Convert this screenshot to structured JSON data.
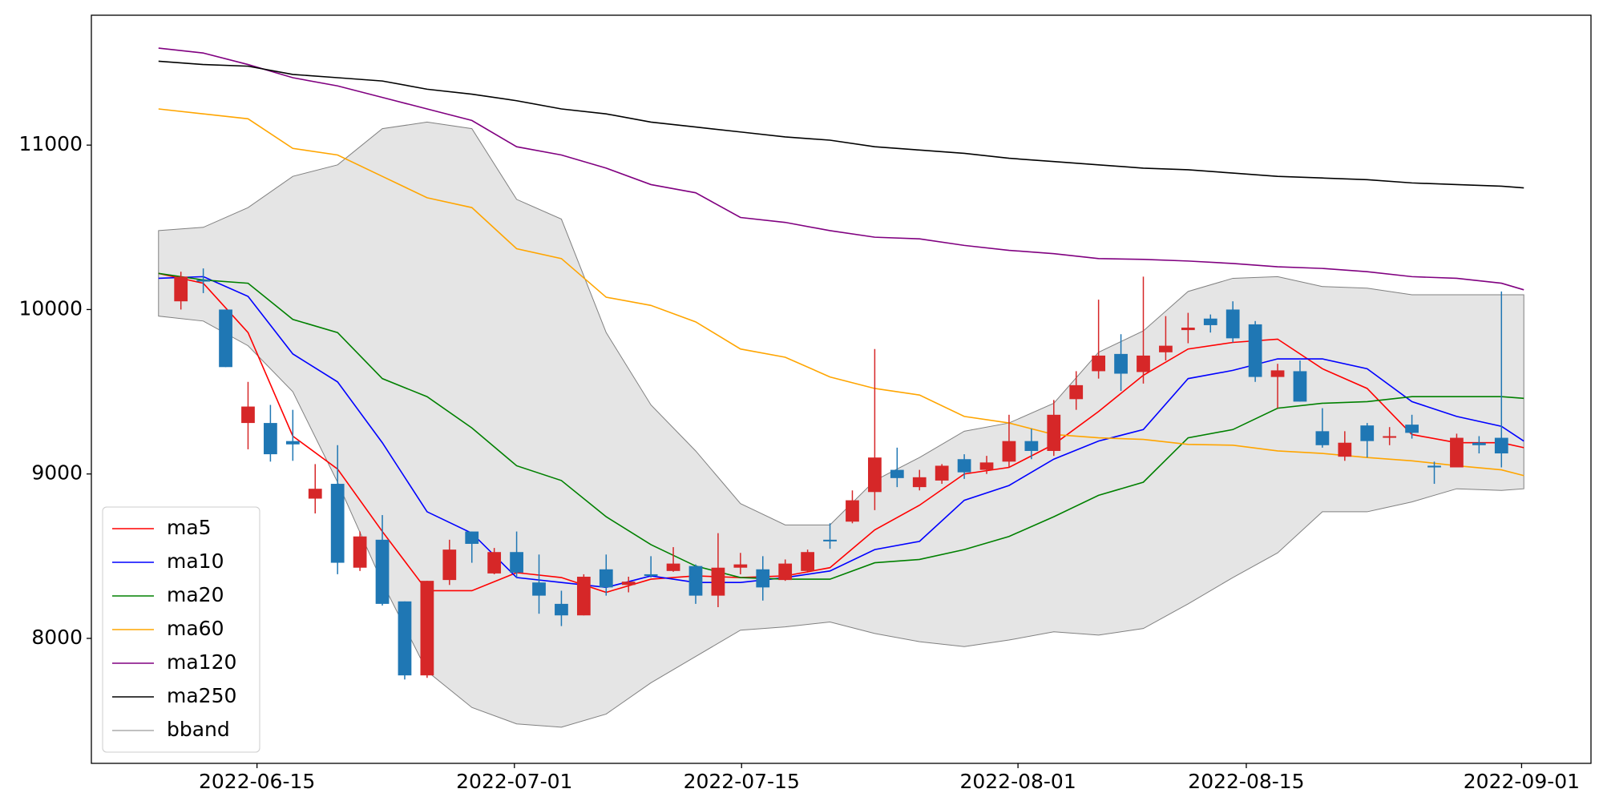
{
  "chart_data": {
    "type": "candlestick",
    "xlim": [
      -4,
      63
    ],
    "ylim": [
      7240,
      11790
    ],
    "yticks": [
      8000,
      9000,
      10000,
      11000
    ],
    "xticks": [
      {
        "value": 3.4,
        "label": "2022-06-15"
      },
      {
        "value": 14.9,
        "label": "2022-07-01"
      },
      {
        "value": 25.05,
        "label": "2022-07-15"
      },
      {
        "value": 37.4,
        "label": "2022-08-01"
      },
      {
        "value": 47.6,
        "label": "2022-08-15"
      },
      {
        "value": 59.9,
        "label": "2022-09-01"
      }
    ],
    "legend": "lower left",
    "up_color": "#d62728",
    "down_color": "#1f77b4",
    "candles": {
      "x": [
        0,
        1,
        2,
        3,
        4,
        5,
        6,
        7,
        8,
        9,
        10,
        11,
        12,
        13,
        14,
        15,
        16,
        17,
        18,
        19,
        20,
        21,
        22,
        23,
        24,
        25,
        26,
        27,
        28,
        29,
        30,
        31,
        32,
        33,
        34,
        35,
        36,
        37,
        38,
        39,
        40,
        41,
        42,
        43,
        44,
        45,
        46,
        47,
        48,
        49,
        50,
        51,
        52,
        53,
        54,
        55,
        56,
        57,
        58,
        59
      ],
      "open": [
        10050,
        10180,
        10000,
        9310,
        9310,
        9200,
        8850,
        8940,
        8430,
        8600,
        8225,
        7775,
        8355,
        8650,
        8395,
        8525,
        8340,
        8210,
        8140,
        8420,
        8325,
        8390,
        8410,
        8440,
        8260,
        8430,
        8420,
        8355,
        8410,
        8600,
        8710,
        8890,
        9025,
        8920,
        8960,
        9090,
        9025,
        9075,
        9200,
        9140,
        9455,
        9625,
        9730,
        9620,
        9740,
        9875,
        9945,
        10000,
        9910,
        9590,
        9625,
        9260,
        9105,
        9295,
        9220,
        9300,
        9050,
        9040,
        9190,
        9220
      ],
      "high": [
        10230,
        10250,
        10000,
        9560,
        9420,
        9390,
        9060,
        9175,
        8650,
        8750,
        8225,
        8350,
        8600,
        8650,
        8550,
        8650,
        8510,
        8290,
        8390,
        8510,
        8375,
        8500,
        8555,
        8450,
        8640,
        8520,
        8500,
        8480,
        8540,
        8700,
        8900,
        9760,
        9160,
        9025,
        9060,
        9120,
        9110,
        9360,
        9275,
        9450,
        9625,
        10060,
        9850,
        10200,
        9960,
        9980,
        9970,
        10050,
        9930,
        9670,
        9690,
        9400,
        9260,
        9310,
        9285,
        9360,
        9075,
        9245,
        9230,
        10110
      ],
      "low": [
        10000,
        10100,
        9650,
        9150,
        9075,
        9080,
        8760,
        8390,
        8410,
        8200,
        7750,
        7760,
        8325,
        8460,
        8390,
        8370,
        8150,
        8075,
        8140,
        8260,
        8280,
        8370,
        8405,
        8210,
        8190,
        8390,
        8230,
        8350,
        8400,
        8545,
        8700,
        8780,
        8920,
        8900,
        8940,
        8970,
        9000,
        9040,
        9090,
        9110,
        9390,
        9580,
        9505,
        9550,
        9690,
        9795,
        9860,
        9800,
        9560,
        9400,
        9440,
        9160,
        9080,
        9100,
        9175,
        9215,
        8940,
        9040,
        9125,
        9040
      ],
      "close": [
        10200,
        10170,
        9650,
        9410,
        9120,
        9180,
        8910,
        8460,
        8620,
        8210,
        7775,
        8350,
        8540,
        8575,
        8525,
        8400,
        8260,
        8140,
        8375,
        8310,
        8345,
        8380,
        8455,
        8260,
        8430,
        8450,
        8310,
        8455,
        8525,
        8590,
        8840,
        9100,
        8975,
        8980,
        9050,
        9010,
        9070,
        9200,
        9140,
        9360,
        9540,
        9720,
        9610,
        9720,
        9780,
        9890,
        9905,
        9825,
        9590,
        9630,
        9440,
        9175,
        9190,
        9200,
        9230,
        9250,
        9040,
        9220,
        9175,
        9125
      ]
    },
    "lines": {
      "x": [
        -1,
        1,
        3,
        5,
        7,
        9,
        11,
        13,
        15,
        17,
        19,
        21,
        23,
        25,
        27,
        29,
        31,
        33,
        35,
        37,
        39,
        41,
        43,
        45,
        47,
        49,
        51,
        53,
        55,
        57,
        59,
        60
      ],
      "series": [
        {
          "name": "ma5",
          "color": "#ff0000",
          "values": [
            10220,
            10160,
            9860,
            9230,
            9030,
            8650,
            8290,
            8290,
            8400,
            8370,
            8280,
            8360,
            8380,
            8370,
            8380,
            8430,
            8660,
            8810,
            9000,
            9040,
            9180,
            9380,
            9600,
            9760,
            9800,
            9820,
            9640,
            9520,
            9240,
            9190,
            9190,
            9160
          ]
        },
        {
          "name": "ma10",
          "color": "#0000ff",
          "values": [
            10190,
            10200,
            10080,
            9730,
            9560,
            9190,
            8770,
            8640,
            8370,
            8340,
            8310,
            8380,
            8340,
            8340,
            8370,
            8410,
            8540,
            8590,
            8840,
            8930,
            9090,
            9200,
            9270,
            9580,
            9630,
            9700,
            9700,
            9640,
            9440,
            9350,
            9290,
            9200
          ]
        },
        {
          "name": "ma20",
          "color": "#008000",
          "values": [
            10220,
            10180,
            10160,
            9940,
            9860,
            9580,
            9470,
            9280,
            9050,
            8960,
            8740,
            8570,
            8440,
            8370,
            8360,
            8360,
            8460,
            8480,
            8540,
            8620,
            8740,
            8870,
            8950,
            9220,
            9270,
            9400,
            9430,
            9440,
            9470,
            9470,
            9470,
            9460
          ]
        },
        {
          "name": "ma60",
          "color": "#ffa500",
          "values": [
            11220,
            11190,
            11160,
            10980,
            10940,
            10810,
            10680,
            10620,
            10370,
            10310,
            10075,
            10025,
            9925,
            9760,
            9710,
            9590,
            9520,
            9480,
            9350,
            9310,
            9240,
            9220,
            9210,
            9180,
            9175,
            9140,
            9125,
            9100,
            9080,
            9050,
            9025,
            8990
          ]
        },
        {
          "name": "ma120",
          "color": "#800080",
          "values": [
            11590,
            11560,
            11490,
            11410,
            11360,
            11290,
            11220,
            11150,
            10990,
            10940,
            10860,
            10760,
            10710,
            10560,
            10530,
            10480,
            10440,
            10430,
            10390,
            10360,
            10340,
            10310,
            10305,
            10295,
            10280,
            10260,
            10250,
            10230,
            10200,
            10190,
            10160,
            10120
          ]
        },
        {
          "name": "ma250",
          "color": "#000000",
          "values": [
            11510,
            11490,
            11480,
            11430,
            11410,
            11390,
            11340,
            11310,
            11270,
            11220,
            11190,
            11140,
            11110,
            11080,
            11050,
            11030,
            10990,
            10970,
            10950,
            10920,
            10900,
            10880,
            10860,
            10850,
            10830,
            10810,
            10800,
            10790,
            10770,
            10760,
            10750,
            10740
          ]
        }
      ]
    },
    "band": {
      "name": "bband",
      "color": "#808080",
      "fill": "#e5e5e5",
      "upper": [
        10480,
        10500,
        10620,
        10810,
        10880,
        11100,
        11140,
        11100,
        10670,
        10550,
        9860,
        9420,
        9140,
        8820,
        8690,
        8690,
        8960,
        9100,
        9260,
        9310,
        9430,
        9740,
        9870,
        10110,
        10190,
        10200,
        10140,
        10130,
        10090,
        10090,
        10090,
        10090
      ],
      "lower": [
        9960,
        9930,
        9780,
        9500,
        8950,
        8340,
        7800,
        7580,
        7480,
        7460,
        7540,
        7730,
        7890,
        8050,
        8070,
        8100,
        8030,
        7980,
        7950,
        7990,
        8040,
        8020,
        8060,
        8210,
        8370,
        8520,
        8770,
        8770,
        8830,
        8910,
        8900,
        8910
      ]
    }
  }
}
